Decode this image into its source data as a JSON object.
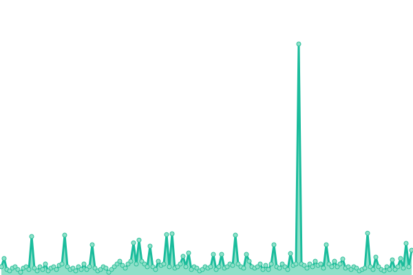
{
  "chart_data": {
    "type": "area",
    "title": "",
    "xlabel": "",
    "ylabel": "",
    "ylim": [
      0,
      100
    ],
    "grid": false,
    "markers": true,
    "colors": {
      "line": "#1abc9c",
      "area": "#8fe0c9",
      "marker_fill": "#8fe0c9",
      "marker_stroke": "#2bbf99"
    },
    "values": [
      3,
      6,
      2,
      1.5,
      2.5,
      3,
      2,
      1,
      2.5,
      3,
      2,
      14,
      2.5,
      1.5,
      3,
      2,
      4,
      1.5,
      2.5,
      3,
      2,
      3.5,
      4,
      14.5,
      3,
      2,
      2.5,
      1.5,
      3,
      2,
      4,
      2,
      3,
      11,
      2.5,
      1.5,
      2,
      3,
      2.5,
      1,
      2,
      3,
      4,
      5,
      3.5,
      2.5,
      4,
      5,
      11.7,
      4,
      12.7,
      5,
      4,
      3,
      10.5,
      3,
      2,
      5,
      3.5,
      4,
      14.7,
      3,
      15,
      2.5,
      3,
      4,
      6.8,
      3,
      8,
      2,
      3,
      2.5,
      1.5,
      2,
      3,
      2.5,
      3,
      7.5,
      2,
      3,
      7.5,
      2.5,
      3,
      4,
      3.5,
      14.5,
      4,
      3,
      2.5,
      7.5,
      5,
      3,
      2.5,
      3,
      4,
      2,
      3.5,
      2,
      4,
      11,
      3,
      2.5,
      4,
      3,
      2,
      7.8,
      3.5,
      4,
      84,
      4,
      3.5,
      2.5,
      4,
      3,
      5,
      3.5,
      4,
      2.5,
      11,
      4,
      3,
      5,
      3,
      4,
      5.8,
      2.5,
      3,
      2,
      3,
      2.5,
      1.5,
      2,
      2.5,
      15.2,
      3,
      2,
      6.5,
      3,
      2,
      1.5,
      3,
      2,
      5.5,
      2,
      3,
      6,
      2.5,
      11.5,
      3,
      9
    ]
  }
}
